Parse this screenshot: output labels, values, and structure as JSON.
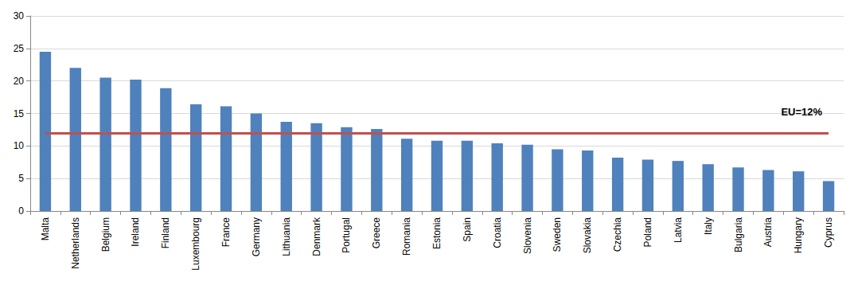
{
  "chart_data": {
    "type": "bar",
    "categories": [
      "Malta",
      "Netherlands",
      "Belgium",
      "Ireland",
      "Finland",
      "Luxembourg",
      "France",
      "Germany",
      "Lithuania",
      "Denmark",
      "Portugal",
      "Greece",
      "Romania",
      "Estonia",
      "Spain",
      "Croatia",
      "Slovenia",
      "Sweden",
      "Slovakia",
      "Czechia",
      "Poland",
      "Latvia",
      "Italy",
      "Bulgaria",
      "Austria",
      "Hungary",
      "Cyprus"
    ],
    "values": [
      24.5,
      22,
      20.5,
      20.2,
      18.9,
      16.4,
      16.1,
      15,
      13.7,
      13.5,
      12.9,
      12.6,
      11.1,
      10.8,
      10.8,
      10.4,
      10.2,
      9.5,
      9.3,
      8.2,
      7.9,
      7.7,
      7.2,
      6.7,
      6.3,
      6.1,
      4.6
    ],
    "color": "#4f81bd",
    "ylim": [
      0,
      30
    ],
    "yticks": [
      0,
      5,
      10,
      15,
      20,
      25,
      30
    ],
    "grid": true,
    "reference_line": {
      "value": 12,
      "label": "EU=12%",
      "color": "#c0504d"
    }
  }
}
